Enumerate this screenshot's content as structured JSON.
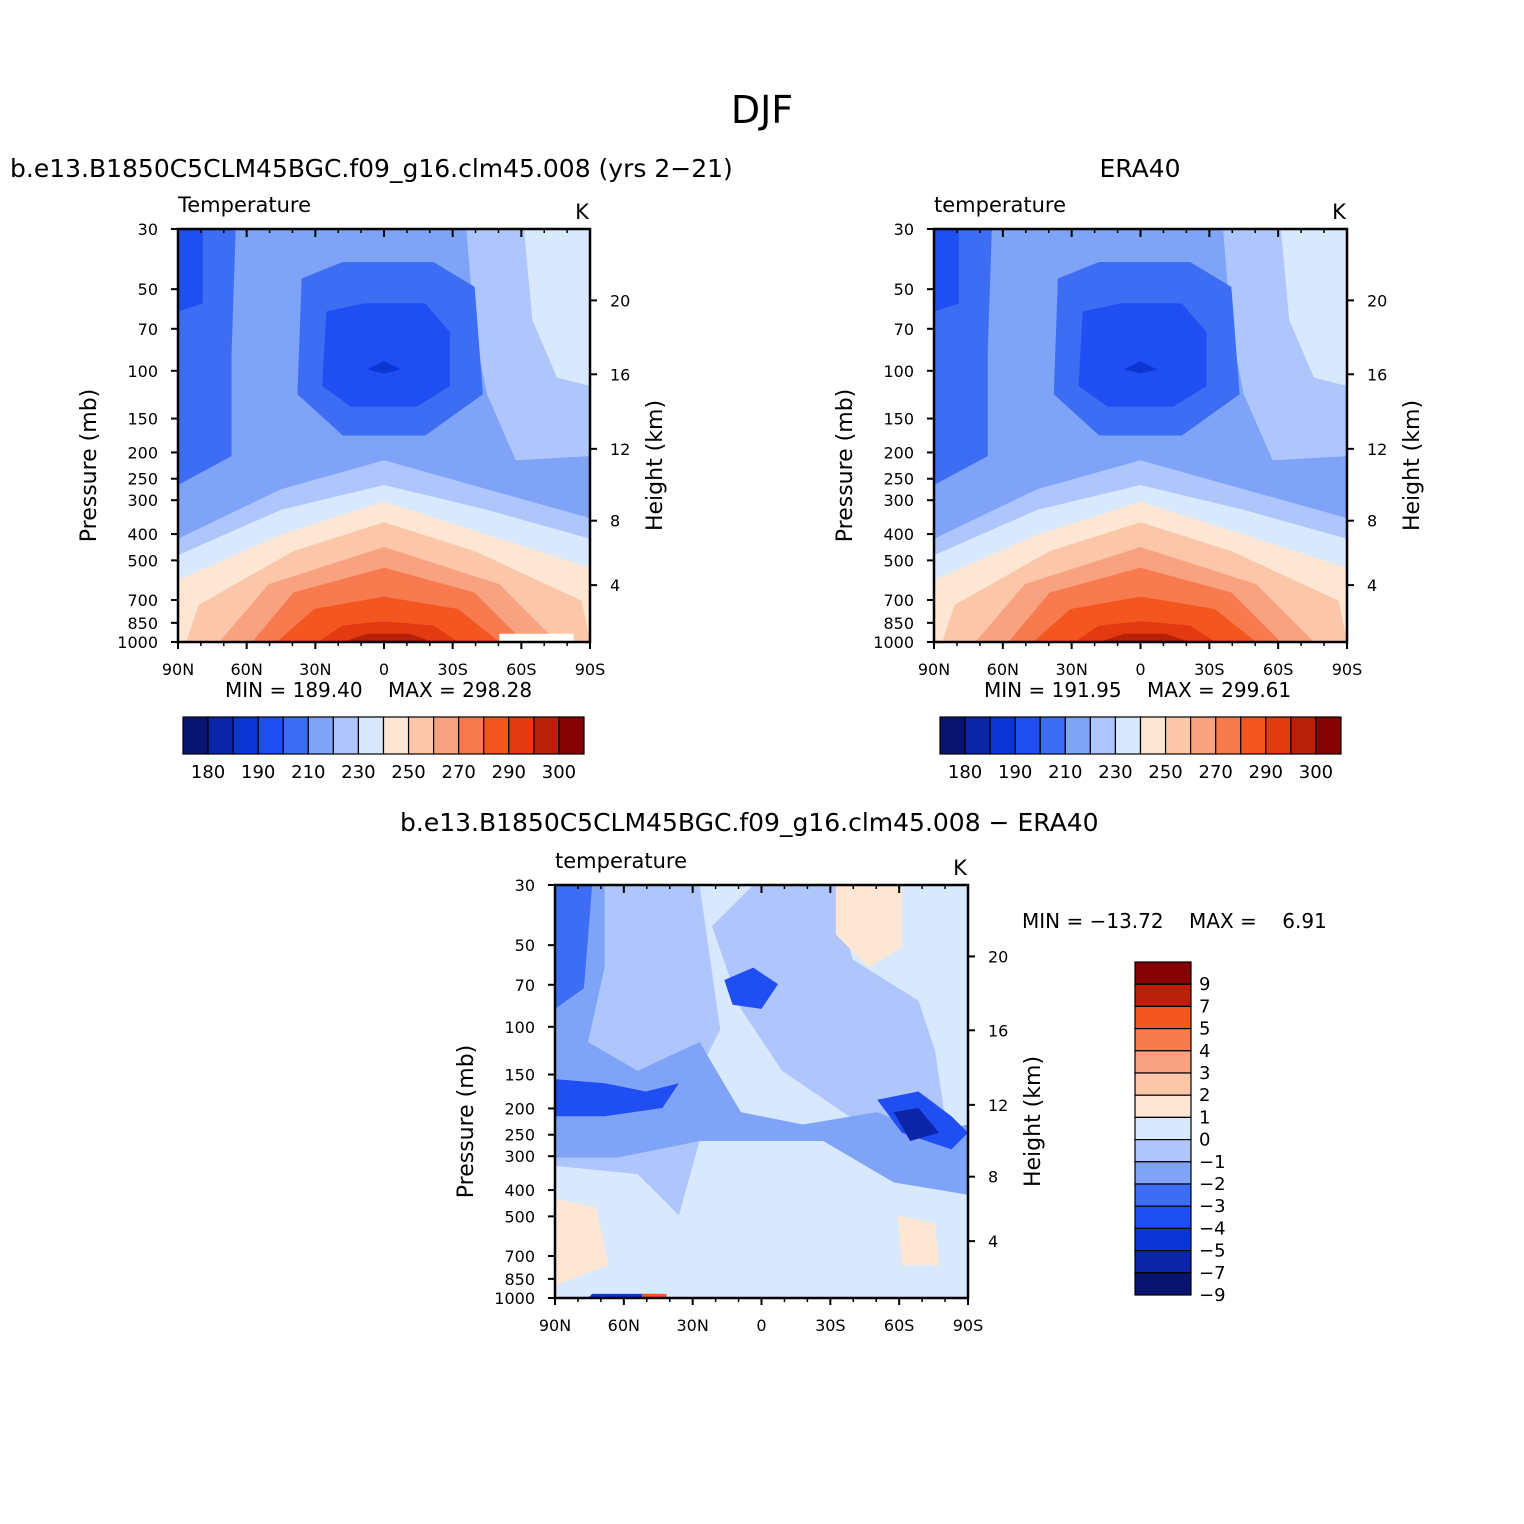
{
  "title": "DJF",
  "colors": {
    "abs_levels": [
      "#08136e",
      "#0b24a8",
      "#0c35d6",
      "#1f4ff2",
      "#3c6df2",
      "#7ea3f7",
      "#aec6fb",
      "#d9e9fd",
      "#fde6d3",
      "#fcc7a9",
      "#f9a27f",
      "#f77b4f",
      "#f4561f",
      "#e33b0f",
      "#b72107",
      "#870303"
    ],
    "diff_levels": [
      "#08136e",
      "#0b24a8",
      "#0c35d6",
      "#1f4ff2",
      "#3c6df2",
      "#7ea3f7",
      "#aec6fb",
      "#d9e9fd",
      "#fde6d3",
      "#fcc7a9",
      "#f9a27f",
      "#f77b4f",
      "#f4561f",
      "#b72107",
      "#870303"
    ]
  },
  "chart_data": [
    {
      "type": "heatmap",
      "panel": "model",
      "title": "b.e13.B1850C5CLM45BGC.f09_g16.clm45.008 (yrs 2−21)",
      "left_label": "Temperature",
      "units": "K",
      "xlabel": "",
      "ylabel": "Pressure (mb)",
      "ylabel_right": "Height (km)",
      "x_ticks": [
        "90N",
        "60N",
        "30N",
        "0",
        "30S",
        "60S",
        "90S"
      ],
      "y_ticks": [
        "30",
        "50",
        "70",
        "100",
        "150",
        "200",
        "250",
        "300",
        "400",
        "500",
        "700",
        "850",
        "1000"
      ],
      "y_right_ticks": [
        "20",
        "16",
        "12",
        "8",
        "4"
      ],
      "min": "189.40",
      "max": "298.28",
      "min_label": "MIN =",
      "max_label": "MAX =",
      "ylim": [
        1000,
        30
      ],
      "xlim": [
        "90N",
        "90S"
      ],
      "colorbar_labels": [
        "180",
        "190",
        "210",
        "230",
        "250",
        "270",
        "290",
        "300"
      ],
      "colorbar_values": [
        180,
        185,
        190,
        200,
        210,
        220,
        230,
        240,
        250,
        260,
        270,
        280,
        290,
        295,
        300
      ]
    },
    {
      "type": "heatmap",
      "panel": "obs",
      "title": "ERA40",
      "left_label": "temperature",
      "units": "K",
      "xlabel": "",
      "ylabel": "Pressure (mb)",
      "ylabel_right": "Height (km)",
      "x_ticks": [
        "90N",
        "60N",
        "30N",
        "0",
        "30S",
        "60S",
        "90S"
      ],
      "y_ticks": [
        "30",
        "50",
        "70",
        "100",
        "150",
        "200",
        "250",
        "300",
        "400",
        "500",
        "700",
        "850",
        "1000"
      ],
      "y_right_ticks": [
        "20",
        "16",
        "12",
        "8",
        "4"
      ],
      "min": "191.95",
      "max": "299.61",
      "min_label": "MIN =",
      "max_label": "MAX =",
      "ylim": [
        1000,
        30
      ],
      "xlim": [
        "90N",
        "90S"
      ],
      "colorbar_labels": [
        "180",
        "190",
        "210",
        "230",
        "250",
        "270",
        "290",
        "300"
      ],
      "colorbar_values": [
        180,
        185,
        190,
        200,
        210,
        220,
        230,
        240,
        250,
        260,
        270,
        280,
        290,
        295,
        300
      ]
    },
    {
      "type": "heatmap",
      "panel": "difference",
      "title": "b.e13.B1850C5CLM45BGC.f09_g16.clm45.008 − ERA40",
      "left_label": "temperature",
      "units": "K",
      "xlabel": "",
      "ylabel": "Pressure (mb)",
      "ylabel_right": "Height (km)",
      "x_ticks": [
        "90N",
        "60N",
        "30N",
        "0",
        "30S",
        "60S",
        "90S"
      ],
      "y_ticks": [
        "30",
        "50",
        "70",
        "100",
        "150",
        "200",
        "250",
        "300",
        "400",
        "500",
        "700",
        "850",
        "1000"
      ],
      "y_right_ticks": [
        "20",
        "16",
        "12",
        "8",
        "4"
      ],
      "min": "−13.72",
      "max": "6.91",
      "min_label": "MIN =",
      "max_label": "MAX =",
      "ylim": [
        1000,
        30
      ],
      "xlim": [
        "90N",
        "90S"
      ],
      "colorbar_labels": [
        "9",
        "7",
        "5",
        "4",
        "3",
        "2",
        "1",
        "0",
        "−1",
        "−2",
        "−3",
        "−4",
        "−5",
        "−7",
        "−9"
      ]
    }
  ]
}
